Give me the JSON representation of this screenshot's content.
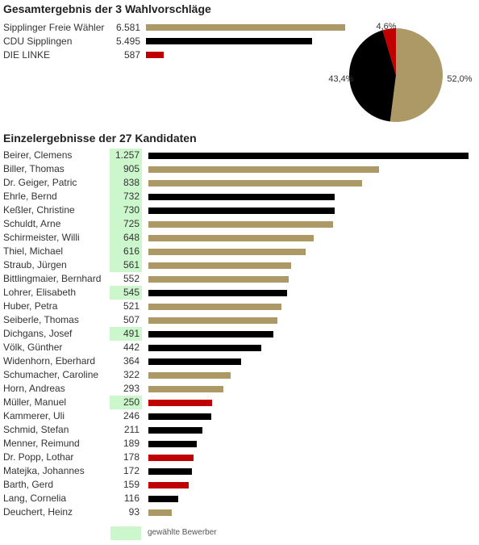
{
  "colors": {
    "sfw": "#ac9966",
    "cdu": "#000000",
    "linke": "#c00000",
    "elected": "#ccf7cc"
  },
  "chart_data": [
    {
      "type": "bar",
      "title": "Gesamtergebnis der 3 Wahlvorschläge",
      "categories": [
        "Sipplinger Freie Wähler",
        "CDU Sipplingen",
        "DIE LINKE"
      ],
      "values": [
        6581,
        5495,
        587
      ],
      "value_labels": [
        "6.581",
        "5.495",
        "587"
      ],
      "colors": [
        "#ac9966",
        "#000000",
        "#c00000"
      ]
    },
    {
      "type": "pie",
      "slices": [
        {
          "value": 52.0,
          "label": "52,0%",
          "color": "#ac9966"
        },
        {
          "value": 43.4,
          "label": "43,4%",
          "color": "#000000"
        },
        {
          "value": 4.6,
          "label": "4,6%",
          "color": "#c00000"
        }
      ]
    },
    {
      "type": "bar",
      "title": "Einzelergebnisse der 27 Kandidaten",
      "legend": "gewählte Bewerber",
      "rows": [
        {
          "name": "Beirer, Clemens",
          "value": 1257,
          "label": "1.257",
          "party": "cdu",
          "elected": true
        },
        {
          "name": "Biller, Thomas",
          "value": 905,
          "label": "905",
          "party": "sfw",
          "elected": true
        },
        {
          "name": "Dr. Geiger, Patric",
          "value": 838,
          "label": "838",
          "party": "sfw",
          "elected": true
        },
        {
          "name": "Ehrle, Bernd",
          "value": 732,
          "label": "732",
          "party": "cdu",
          "elected": true
        },
        {
          "name": "Keßler, Christine",
          "value": 730,
          "label": "730",
          "party": "cdu",
          "elected": true
        },
        {
          "name": "Schuldt, Arne",
          "value": 725,
          "label": "725",
          "party": "sfw",
          "elected": true
        },
        {
          "name": "Schirmeister, Willi",
          "value": 648,
          "label": "648",
          "party": "sfw",
          "elected": true
        },
        {
          "name": "Thiel, Michael",
          "value": 616,
          "label": "616",
          "party": "sfw",
          "elected": true
        },
        {
          "name": "Straub, Jürgen",
          "value": 561,
          "label": "561",
          "party": "sfw",
          "elected": true
        },
        {
          "name": "Bittlingmaier, Bernhard",
          "value": 552,
          "label": "552",
          "party": "sfw",
          "elected": false
        },
        {
          "name": "Lohrer, Elisabeth",
          "value": 545,
          "label": "545",
          "party": "cdu",
          "elected": true
        },
        {
          "name": "Huber, Petra",
          "value": 521,
          "label": "521",
          "party": "sfw",
          "elected": false
        },
        {
          "name": "Seiberle, Thomas",
          "value": 507,
          "label": "507",
          "party": "sfw",
          "elected": false
        },
        {
          "name": "Dichgans, Josef",
          "value": 491,
          "label": "491",
          "party": "cdu",
          "elected": true
        },
        {
          "name": "Völk, Günther",
          "value": 442,
          "label": "442",
          "party": "cdu",
          "elected": false
        },
        {
          "name": "Widenhorn, Eberhard",
          "value": 364,
          "label": "364",
          "party": "cdu",
          "elected": false
        },
        {
          "name": "Schumacher, Caroline",
          "value": 322,
          "label": "322",
          "party": "sfw",
          "elected": false
        },
        {
          "name": "Horn, Andreas",
          "value": 293,
          "label": "293",
          "party": "sfw",
          "elected": false
        },
        {
          "name": "Müller, Manuel",
          "value": 250,
          "label": "250",
          "party": "linke",
          "elected": true
        },
        {
          "name": "Kammerer, Uli",
          "value": 246,
          "label": "246",
          "party": "cdu",
          "elected": false
        },
        {
          "name": "Schmid, Stefan",
          "value": 211,
          "label": "211",
          "party": "cdu",
          "elected": false
        },
        {
          "name": "Menner, Reimund",
          "value": 189,
          "label": "189",
          "party": "cdu",
          "elected": false
        },
        {
          "name": "Dr. Popp, Lothar",
          "value": 178,
          "label": "178",
          "party": "linke",
          "elected": false
        },
        {
          "name": "Matejka, Johannes",
          "value": 172,
          "label": "172",
          "party": "cdu",
          "elected": false
        },
        {
          "name": "Barth, Gerd",
          "value": 159,
          "label": "159",
          "party": "linke",
          "elected": false
        },
        {
          "name": "Lang, Cornelia",
          "value": 116,
          "label": "116",
          "party": "cdu",
          "elected": false
        },
        {
          "name": "Deuchert, Heinz",
          "value": 93,
          "label": "93",
          "party": "sfw",
          "elected": false
        }
      ]
    }
  ]
}
